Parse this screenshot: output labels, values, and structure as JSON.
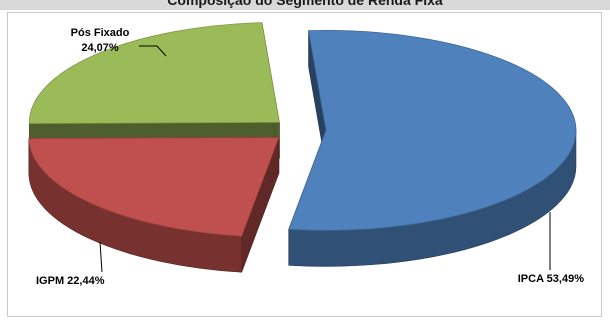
{
  "chart_data": {
    "type": "pie",
    "title": "Composição do Segmento de Renda Fixa",
    "exploded": true,
    "three_d": true,
    "slices": [
      {
        "name": "IPCA",
        "label": "IPCA 53,49%",
        "value": 53.49,
        "color": "#4f81bd"
      },
      {
        "name": "IGPM",
        "label": "IGPM 22,44%",
        "value": 22.44,
        "color": "#c0504d"
      },
      {
        "name": "Pós Fixado",
        "label_lines": [
          "Pós Fixado",
          "24,07%"
        ],
        "value": 24.07,
        "color": "#9bbb59"
      }
    ]
  }
}
